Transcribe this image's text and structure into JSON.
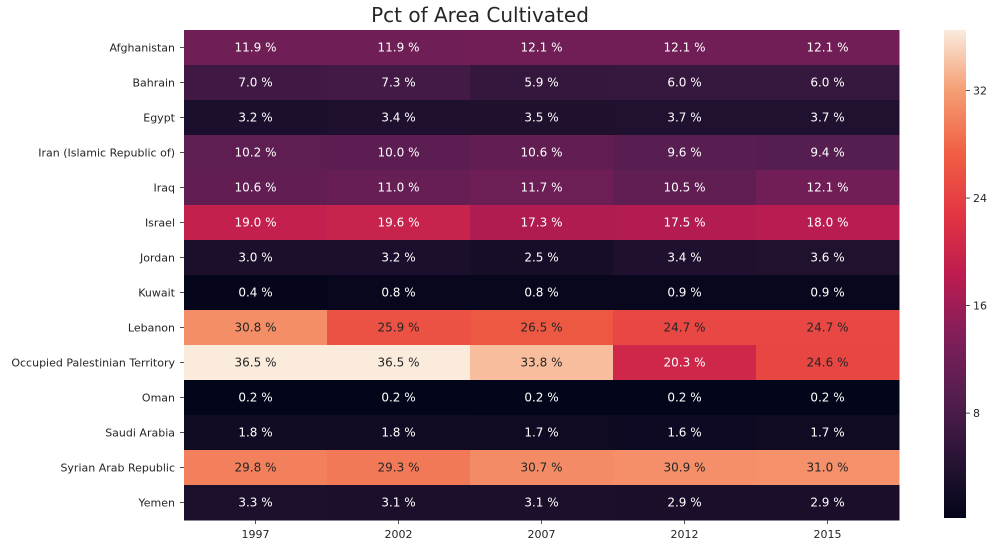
{
  "chart_data": {
    "type": "heatmap",
    "title": "Pct of Area Cultivated",
    "xlabel": "",
    "ylabel": "",
    "columns": [
      "1997",
      "2002",
      "2007",
      "2012",
      "2015"
    ],
    "rows": [
      "Afghanistan",
      "Bahrain",
      "Egypt",
      "Iran (Islamic Republic of)",
      "Iraq",
      "Israel",
      "Jordan",
      "Kuwait",
      "Lebanon",
      "Occupied Palestinian Territory",
      "Oman",
      "Saudi Arabia",
      "Syrian Arab Republic",
      "Yemen"
    ],
    "values": [
      [
        11.9,
        11.9,
        12.1,
        12.1,
        12.1
      ],
      [
        7.0,
        7.3,
        5.9,
        6.0,
        6.0
      ],
      [
        3.2,
        3.4,
        3.5,
        3.7,
        3.7
      ],
      [
        10.2,
        10.0,
        10.6,
        9.6,
        9.4
      ],
      [
        10.6,
        11.0,
        11.7,
        10.5,
        12.1
      ],
      [
        19.0,
        19.6,
        17.3,
        17.5,
        18.0
      ],
      [
        3.0,
        3.2,
        2.5,
        3.4,
        3.6
      ],
      [
        0.4,
        0.8,
        0.8,
        0.9,
        0.9
      ],
      [
        30.8,
        25.9,
        26.5,
        24.7,
        24.7
      ],
      [
        36.5,
        36.5,
        33.8,
        20.3,
        24.6
      ],
      [
        0.2,
        0.2,
        0.2,
        0.2,
        0.2
      ],
      [
        1.8,
        1.8,
        1.7,
        1.6,
        1.7
      ],
      [
        29.8,
        29.3,
        30.7,
        30.9,
        31.0
      ],
      [
        3.3,
        3.1,
        3.1,
        2.9,
        2.9
      ]
    ],
    "value_suffix": " %",
    "colormap": "rocket",
    "vmin": 0.2,
    "vmax": 36.5,
    "colorbar": {
      "ticks": [
        8,
        16,
        24,
        32
      ],
      "position": "right"
    },
    "grid": false
  }
}
